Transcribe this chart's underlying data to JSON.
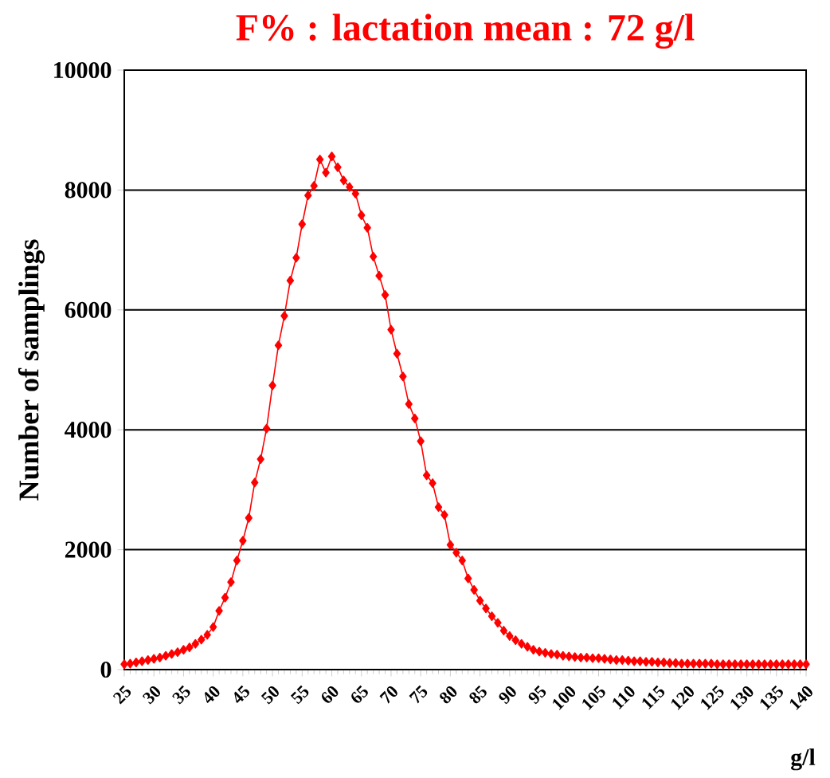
{
  "chart_data": {
    "type": "line",
    "title": "F% : lactation mean : 72 g/l",
    "xlabel": "g/l",
    "ylabel": "Number of samplings",
    "x": [
      25,
      26,
      27,
      28,
      29,
      30,
      31,
      32,
      33,
      34,
      35,
      36,
      37,
      38,
      39,
      40,
      41,
      42,
      43,
      44,
      45,
      46,
      47,
      48,
      49,
      50,
      51,
      52,
      53,
      54,
      55,
      56,
      57,
      58,
      59,
      60,
      61,
      62,
      63,
      64,
      65,
      66,
      67,
      68,
      69,
      70,
      71,
      72,
      73,
      74,
      75,
      76,
      77,
      78,
      79,
      80,
      81,
      82,
      83,
      84,
      85,
      86,
      87,
      88,
      89,
      90,
      91,
      92,
      93,
      94,
      95,
      96,
      97,
      98,
      99,
      100,
      101,
      102,
      103,
      104,
      105,
      106,
      107,
      108,
      109,
      110,
      111,
      112,
      113,
      114,
      115,
      116,
      117,
      118,
      119,
      120,
      121,
      122,
      123,
      124,
      125,
      126,
      127,
      128,
      129,
      130,
      131,
      132,
      133,
      134,
      135,
      136,
      137,
      138,
      139,
      140
    ],
    "series": [
      {
        "color": "#ff0000",
        "values": [
          90,
          100,
          120,
          140,
          160,
          180,
          200,
          230,
          260,
          290,
          330,
          370,
          430,
          500,
          580,
          710,
          980,
          1200,
          1460,
          1820,
          2150,
          2530,
          3120,
          3510,
          4020,
          4740,
          5410,
          5900,
          6490,
          6870,
          7430,
          7910,
          8070,
          8510,
          8290,
          8560,
          8380,
          8160,
          8050,
          7940,
          7580,
          7370,
          6890,
          6570,
          6250,
          5670,
          5270,
          4890,
          4430,
          4190,
          3810,
          3240,
          3110,
          2710,
          2580,
          2080,
          1950,
          1820,
          1520,
          1330,
          1150,
          1020,
          890,
          780,
          650,
          560,
          490,
          430,
          380,
          330,
          300,
          280,
          260,
          250,
          230,
          220,
          210,
          200,
          200,
          190,
          190,
          180,
          170,
          160,
          160,
          150,
          140,
          140,
          130,
          130,
          120,
          120,
          110,
          110,
          100,
          100,
          100,
          100,
          100,
          100,
          90,
          90,
          90,
          90,
          90,
          90,
          90,
          90,
          90,
          90,
          90,
          90,
          90,
          90,
          90,
          90
        ]
      }
    ],
    "xlim": [
      25,
      140
    ],
    "xticks": [
      25,
      30,
      35,
      40,
      45,
      50,
      55,
      60,
      65,
      70,
      75,
      80,
      85,
      90,
      95,
      100,
      105,
      110,
      115,
      120,
      125,
      130,
      135,
      140
    ],
    "ylim": [
      0,
      10000
    ],
    "yticks": [
      0,
      2000,
      4000,
      6000,
      8000,
      10000
    ],
    "grid": "y",
    "marker": "diamond",
    "line_style": "solid"
  }
}
